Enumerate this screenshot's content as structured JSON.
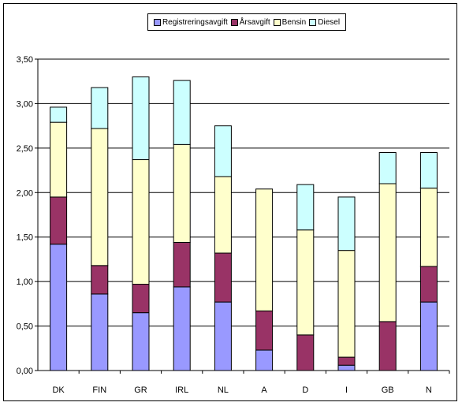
{
  "chart_data": {
    "type": "bar",
    "stacked": true,
    "categories": [
      "DK",
      "FIN",
      "GR",
      "IRL",
      "NL",
      "A",
      "D",
      "I",
      "GB",
      "N"
    ],
    "series": [
      {
        "name": "Registreringsavgift",
        "color": "#9999ff",
        "values": [
          1.42,
          0.86,
          0.65,
          0.94,
          0.77,
          0.23,
          0.0,
          0.06,
          0.0,
          0.77
        ]
      },
      {
        "name": "Årsavgift",
        "color": "#993366",
        "values": [
          0.53,
          0.32,
          0.32,
          0.5,
          0.55,
          0.44,
          0.4,
          0.09,
          0.55,
          0.4
        ]
      },
      {
        "name": "Bensin",
        "color": "#ffffcc",
        "values": [
          0.84,
          1.54,
          1.4,
          1.1,
          0.86,
          1.37,
          1.18,
          1.2,
          1.55,
          0.88
        ]
      },
      {
        "name": "Diesel",
        "color": "#ccffff",
        "values": [
          0.17,
          0.46,
          0.93,
          0.72,
          0.57,
          0.0,
          0.51,
          0.6,
          0.35,
          0.4
        ]
      }
    ],
    "yticks": [
      "0,00",
      "0,50",
      "1,00",
      "1,50",
      "2,00",
      "2,50",
      "3,00",
      "3,50"
    ],
    "ylim": [
      0,
      3.5
    ],
    "grid": true,
    "legend_position": "top"
  }
}
